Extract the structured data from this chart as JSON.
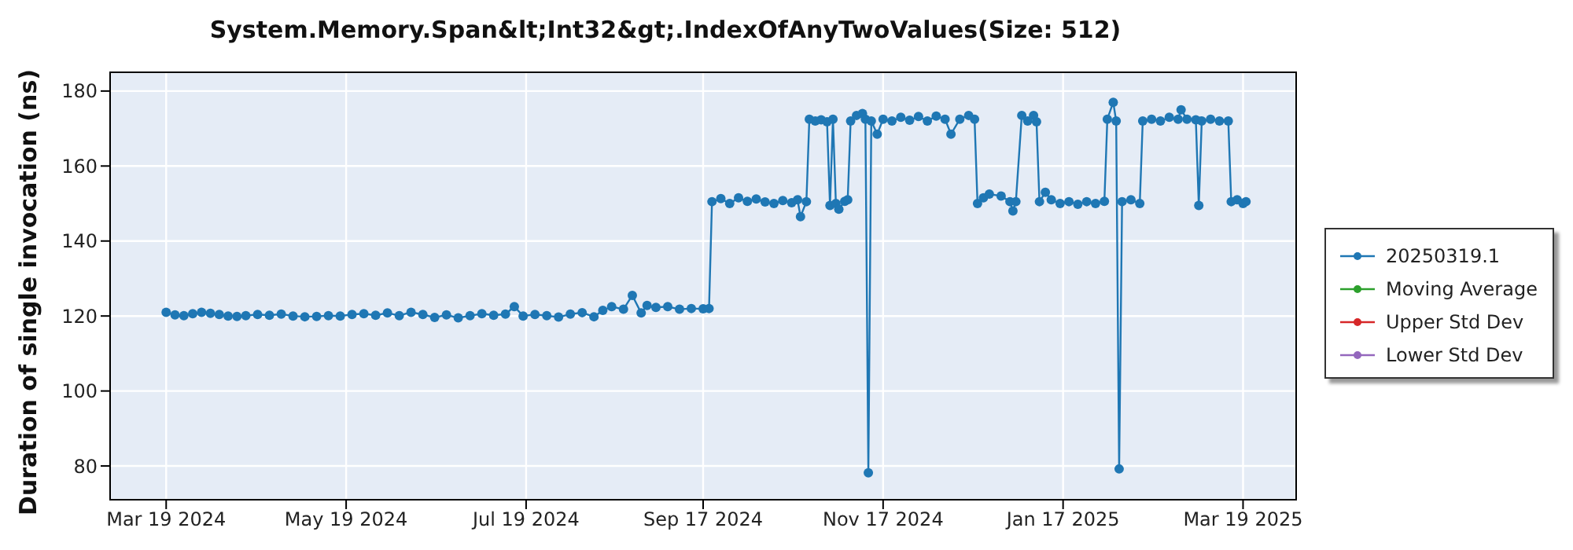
{
  "chart_data": {
    "type": "line",
    "title": "System.Memory.Span&lt;Int32&gt;.IndexOfAnyTwoValues(Size: 512)",
    "ylabel": "Duration of single invocation (ns)",
    "x": [
      "2024-03-19",
      "2024-03-22",
      "2024-03-25",
      "2024-03-28",
      "2024-03-31",
      "2024-04-03",
      "2024-04-06",
      "2024-04-09",
      "2024-04-12",
      "2024-04-15",
      "2024-04-19",
      "2024-04-23",
      "2024-04-27",
      "2024-05-01",
      "2024-05-05",
      "2024-05-09",
      "2024-05-13",
      "2024-05-17",
      "2024-05-21",
      "2024-05-25",
      "2024-05-29",
      "2024-06-02",
      "2024-06-06",
      "2024-06-10",
      "2024-06-14",
      "2024-06-18",
      "2024-06-22",
      "2024-06-26",
      "2024-06-30",
      "2024-07-04",
      "2024-07-08",
      "2024-07-12",
      "2024-07-15",
      "2024-07-18",
      "2024-07-22",
      "2024-07-26",
      "2024-07-30",
      "2024-08-03",
      "2024-08-07",
      "2024-08-11",
      "2024-08-14",
      "2024-08-17",
      "2024-08-21",
      "2024-08-24",
      "2024-08-27",
      "2024-08-29",
      "2024-09-01",
      "2024-09-05",
      "2024-09-09",
      "2024-09-13",
      "2024-09-17",
      "2024-09-19",
      "2024-09-20",
      "2024-09-23",
      "2024-09-26",
      "2024-09-29",
      "2024-10-02",
      "2024-10-05",
      "2024-10-08",
      "2024-10-11",
      "2024-10-14",
      "2024-10-17",
      "2024-10-19",
      "2024-10-20",
      "2024-10-22",
      "2024-10-23",
      "2024-10-25",
      "2024-10-27",
      "2024-10-29",
      "2024-10-30",
      "2024-10-31",
      "2024-11-01",
      "2024-11-02",
      "2024-11-04",
      "2024-11-05",
      "2024-11-06",
      "2024-11-08",
      "2024-11-10",
      "2024-11-11",
      "2024-11-12",
      "2024-11-13",
      "2024-11-15",
      "2024-11-17",
      "2024-11-20",
      "2024-11-23",
      "2024-11-26",
      "2024-11-29",
      "2024-12-02",
      "2024-12-05",
      "2024-12-08",
      "2024-12-10",
      "2024-12-13",
      "2024-12-16",
      "2024-12-18",
      "2024-12-19",
      "2024-12-21",
      "2024-12-23",
      "2024-12-27",
      "2024-12-30",
      "2024-12-31",
      "2025-01-01",
      "2025-01-03",
      "2025-01-05",
      "2025-01-07",
      "2025-01-08",
      "2025-01-09",
      "2025-01-11",
      "2025-01-13",
      "2025-01-16",
      "2025-01-19",
      "2025-01-22",
      "2025-01-25",
      "2025-01-28",
      "2025-01-31",
      "2025-02-01",
      "2025-02-03",
      "2025-02-04",
      "2025-02-05",
      "2025-02-06",
      "2025-02-09",
      "2025-02-12",
      "2025-02-13",
      "2025-02-16",
      "2025-02-19",
      "2025-02-22",
      "2025-02-25",
      "2025-02-26",
      "2025-02-28",
      "2025-03-03",
      "2025-03-04",
      "2025-03-05",
      "2025-03-08",
      "2025-03-11",
      "2025-03-14",
      "2025-03-15",
      "2025-03-17",
      "2025-03-19",
      "2025-03-20"
    ],
    "series": [
      {
        "name": "20250319.1",
        "color": "#1f77b4",
        "values": [
          121.0,
          120.3,
          120.1,
          120.6,
          121.0,
          120.7,
          120.4,
          120.0,
          119.9,
          120.1,
          120.4,
          120.2,
          120.5,
          120.0,
          119.8,
          119.9,
          120.1,
          120.0,
          120.4,
          120.6,
          120.2,
          120.8,
          120.1,
          121.0,
          120.4,
          119.6,
          120.3,
          119.5,
          120.1,
          120.6,
          120.2,
          120.5,
          122.5,
          120.0,
          120.4,
          120.1,
          119.7,
          120.5,
          120.9,
          119.8,
          121.5,
          122.5,
          121.8,
          125.5,
          120.8,
          122.8,
          122.3,
          122.5,
          121.8,
          122.0,
          121.9,
          122.0,
          150.5,
          151.3,
          150.0,
          151.5,
          150.6,
          151.2,
          150.4,
          150.0,
          150.8,
          150.2,
          151.0,
          146.5,
          150.5,
          172.5,
          172.0,
          172.3,
          171.8,
          149.5,
          172.5,
          150.0,
          148.5,
          150.6,
          151.0,
          172.0,
          173.5,
          174.0,
          172.5,
          78.2,
          172.0,
          168.5,
          172.5,
          172.0,
          173.0,
          172.2,
          173.2,
          172.0,
          173.3,
          172.5,
          168.5,
          172.5,
          173.5,
          172.5,
          150.0,
          151.5,
          152.5,
          152.0,
          150.5,
          148.0,
          150.5,
          173.5,
          172.0,
          173.5,
          171.8,
          150.5,
          153.0,
          151.0,
          150.0,
          150.5,
          149.8,
          150.5,
          150.0,
          150.6,
          172.5,
          177.0,
          172.0,
          79.2,
          150.5,
          151.0,
          150.0,
          172.0,
          172.5,
          172.0,
          173.0,
          172.5,
          175.0,
          172.5,
          172.3,
          149.5,
          172.0,
          172.5,
          172.0,
          172.0,
          150.5,
          151.0,
          150.0,
          150.5
        ]
      },
      {
        "name": "Moving Average",
        "color": "#2ca02c",
        "values": [
          null,
          null,
          null,
          null,
          null,
          null,
          null,
          null,
          null,
          null,
          null,
          null,
          null,
          null,
          null,
          null,
          null,
          null,
          null,
          null,
          null,
          null,
          null,
          null,
          null,
          null,
          null,
          null,
          null,
          null,
          null,
          null,
          null,
          null,
          null,
          null,
          null,
          null,
          null,
          null,
          null,
          null,
          null,
          null,
          null,
          null,
          null,
          null,
          null,
          null,
          null,
          null,
          null,
          null,
          null,
          null,
          null,
          null,
          null,
          null,
          null,
          null,
          null,
          null,
          null,
          null,
          null,
          null,
          null,
          null,
          null,
          null,
          null,
          null,
          null,
          null,
          null,
          null,
          null,
          null,
          null,
          null,
          null,
          null,
          null,
          null,
          null,
          null,
          null,
          null,
          null,
          null,
          null,
          null,
          null,
          null,
          null,
          null,
          null,
          null,
          null,
          null,
          null,
          null,
          null,
          null,
          null,
          null,
          null,
          null,
          null,
          null,
          null,
          null,
          null,
          null,
          null,
          null,
          null,
          null,
          null,
          null,
          null,
          null,
          null,
          null,
          null,
          null,
          null,
          null,
          null,
          null,
          null,
          null,
          null,
          null,
          null,
          null
        ]
      },
      {
        "name": "Upper Std Dev",
        "color": "#d62728",
        "values": [
          null,
          null,
          null,
          null,
          null,
          null,
          null,
          null,
          null,
          null,
          null,
          null,
          null,
          null,
          null,
          null,
          null,
          null,
          null,
          null,
          null,
          null,
          null,
          null,
          null,
          null,
          null,
          null,
          null,
          null,
          null,
          null,
          null,
          null,
          null,
          null,
          null,
          null,
          null,
          null,
          null,
          null,
          null,
          null,
          null,
          null,
          null,
          null,
          null,
          null,
          null,
          null,
          null,
          null,
          null,
          null,
          null,
          null,
          null,
          null,
          null,
          null,
          null,
          null,
          null,
          null,
          null,
          null,
          null,
          null,
          null,
          null,
          null,
          null,
          null,
          null,
          null,
          null,
          null,
          null,
          null,
          null,
          null,
          null,
          null,
          null,
          null,
          null,
          null,
          null,
          null,
          null,
          null,
          null,
          null,
          null,
          null,
          null,
          null,
          null,
          null,
          null,
          null,
          null,
          null,
          null,
          null,
          null,
          null,
          null,
          null,
          null,
          null,
          null,
          null,
          null,
          null,
          null,
          null,
          null,
          null,
          null,
          null,
          null,
          null,
          null,
          null,
          null,
          null,
          null,
          null,
          null,
          null,
          null,
          null,
          null,
          null,
          null
        ]
      },
      {
        "name": "Lower Std Dev",
        "color": "#9467bd",
        "values": [
          null,
          null,
          null,
          null,
          null,
          null,
          null,
          null,
          null,
          null,
          null,
          null,
          null,
          null,
          null,
          null,
          null,
          null,
          null,
          null,
          null,
          null,
          null,
          null,
          null,
          null,
          null,
          null,
          null,
          null,
          null,
          null,
          null,
          null,
          null,
          null,
          null,
          null,
          null,
          null,
          null,
          null,
          null,
          null,
          null,
          null,
          null,
          null,
          null,
          null,
          null,
          null,
          null,
          null,
          null,
          null,
          null,
          null,
          null,
          null,
          null,
          null,
          null,
          null,
          null,
          null,
          null,
          null,
          null,
          null,
          null,
          null,
          null,
          null,
          null,
          null,
          null,
          null,
          null,
          null,
          null,
          null,
          null,
          null,
          null,
          null,
          null,
          null,
          null,
          null,
          null,
          null,
          null,
          null,
          null,
          null,
          null,
          null,
          null,
          null,
          null,
          null,
          null,
          null,
          null,
          null,
          null,
          null,
          null,
          null,
          null,
          null,
          null,
          null,
          null,
          null,
          null,
          null,
          null,
          null,
          null,
          null,
          null,
          null,
          null,
          null,
          null,
          null,
          null,
          null,
          null,
          null,
          null,
          null,
          null,
          null,
          null,
          null
        ]
      }
    ],
    "xlim": [
      "2024-02-29",
      "2025-04-06"
    ],
    "xticks": [
      {
        "value": "2024-03-19",
        "label": "Mar 19 2024"
      },
      {
        "value": "2024-05-19",
        "label": "May 19 2024"
      },
      {
        "value": "2024-07-19",
        "label": "Jul 19 2024"
      },
      {
        "value": "2024-09-17",
        "label": "Sep 17 2024"
      },
      {
        "value": "2024-11-17",
        "label": "Nov 17 2024"
      },
      {
        "value": "2025-01-17",
        "label": "Jan 17 2025"
      },
      {
        "value": "2025-03-19",
        "label": "Mar 19 2025"
      }
    ],
    "ylim": [
      71,
      185
    ],
    "yticks": [
      80,
      100,
      120,
      140,
      160,
      180
    ],
    "grid": true,
    "legend": "right",
    "marker": "circle",
    "line_style": "solid"
  }
}
